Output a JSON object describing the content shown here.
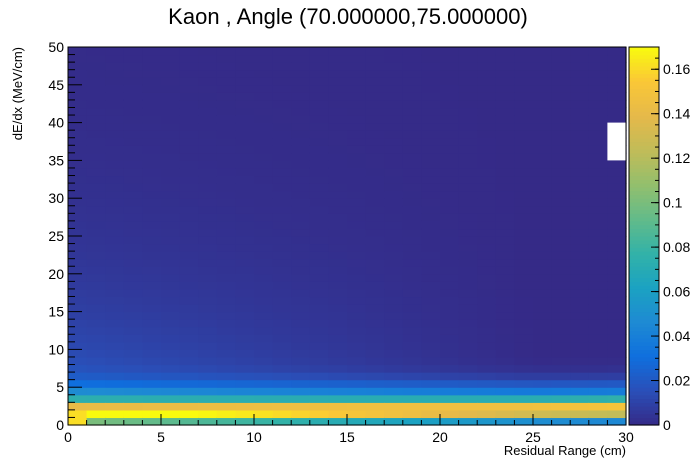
{
  "chart_data": {
    "type": "heatmap",
    "title": "Kaon , Angle (70.000000,75.000000)",
    "xlabel": "Residual Range (cm)",
    "ylabel": "dE/dx (MeV/cm)",
    "xlim": [
      0,
      30
    ],
    "ylim": [
      0,
      50
    ],
    "x_ticks": [
      "0",
      "5",
      "10",
      "15",
      "20",
      "25",
      "30"
    ],
    "y_ticks": [
      "0",
      "5",
      "10",
      "15",
      "20",
      "25",
      "30",
      "35",
      "40",
      "45",
      "50"
    ],
    "x_bins": 30,
    "y_bins": 50,
    "colorbar": {
      "min": 0,
      "max": 0.17,
      "ticks": [
        "0",
        "0.02",
        "0.04",
        "0.06",
        "0.08",
        "0.1",
        "0.12",
        "0.14",
        "0.16"
      ],
      "palette": [
        "#352a87",
        "#2a4fb8",
        "#0f6fde",
        "#1e8ad3",
        "#1ba2c2",
        "#32b2a8",
        "#62bb8a",
        "#93bf6d",
        "#c1bc58",
        "#e5b94a",
        "#fac737",
        "#f9fb0e"
      ]
    },
    "empty_regions": [
      {
        "x_range": [
          29,
          30
        ],
        "y_range": [
          35,
          40
        ]
      }
    ],
    "grid": false,
    "legend": "colorbar-right"
  }
}
